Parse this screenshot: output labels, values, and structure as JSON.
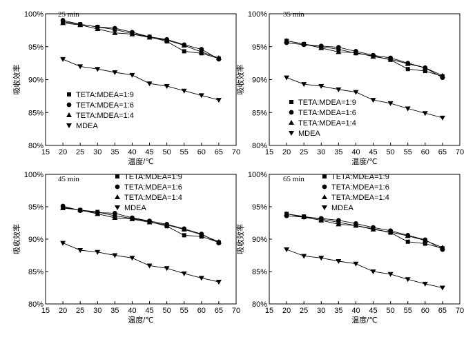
{
  "chart_data": [
    {
      "type": "line",
      "title": "25 min",
      "xlabel": "温度/℃",
      "ylabel": "吸收效率",
      "xlim": [
        15,
        70
      ],
      "ylim": [
        80,
        100
      ],
      "xticks": [
        "15",
        "20",
        "25",
        "30",
        "35",
        "40",
        "45",
        "50",
        "55",
        "60",
        "65",
        "70"
      ],
      "yticks": [
        "80%",
        "85%",
        "90%",
        "95%",
        "100%"
      ],
      "legend_position": "left-middle",
      "x": [
        20,
        25,
        30,
        35,
        40,
        45,
        50,
        55,
        60,
        65
      ],
      "series": [
        {
          "name": "TETA:MDEA=1:9",
          "marker": "square",
          "values": [
            98.8,
            98.4,
            98.0,
            97.6,
            97.0,
            96.5,
            95.8,
            94.3,
            94.0,
            93.2
          ]
        },
        {
          "name": "TETA:MDEA=1:6",
          "marker": "circle",
          "values": [
            99.0,
            98.4,
            98.0,
            97.8,
            97.2,
            96.5,
            96.1,
            95.3,
            94.6,
            93.1
          ]
        },
        {
          "name": "TETA:MDEA=1:4",
          "marker": "triangle",
          "values": [
            98.6,
            98.3,
            97.7,
            97.1,
            96.9,
            96.4,
            96.0,
            95.2,
            94.2,
            93.3
          ]
        },
        {
          "name": "MDEA",
          "marker": "triangle-down",
          "values": [
            93.1,
            92.0,
            91.6,
            91.1,
            90.7,
            89.4,
            89.0,
            88.3,
            87.6,
            86.9
          ]
        }
      ]
    },
    {
      "type": "line",
      "title": "35 min",
      "xlabel": "温度/℃",
      "ylabel": "吸收效率",
      "xlim": [
        15,
        70
      ],
      "ylim": [
        80,
        100
      ],
      "xticks": [
        "15",
        "20",
        "25",
        "30",
        "35",
        "40",
        "45",
        "50",
        "55",
        "60",
        "65",
        "70"
      ],
      "yticks": [
        "80%",
        "85%",
        "90%",
        "95%",
        "100%"
      ],
      "legend_position": "left-lower",
      "x": [
        20,
        25,
        30,
        35,
        40,
        45,
        50,
        55,
        60,
        65
      ],
      "series": [
        {
          "name": "TETA:MDEA=1:9",
          "marker": "square",
          "values": [
            95.9,
            95.4,
            95.0,
            94.6,
            94.0,
            93.6,
            93.0,
            91.6,
            91.3,
            90.5
          ]
        },
        {
          "name": "TETA:MDEA=1:6",
          "marker": "circle",
          "values": [
            95.6,
            95.3,
            95.1,
            94.9,
            94.3,
            93.7,
            93.3,
            92.5,
            91.8,
            90.3
          ]
        },
        {
          "name": "TETA:MDEA=1:4",
          "marker": "triangle",
          "values": [
            95.9,
            95.4,
            94.8,
            94.2,
            94.1,
            93.5,
            93.1,
            92.4,
            91.8,
            90.6
          ]
        },
        {
          "name": "MDEA",
          "marker": "triangle-down",
          "values": [
            90.3,
            89.3,
            89.0,
            88.5,
            88.1,
            86.9,
            86.4,
            85.6,
            84.9,
            84.2
          ]
        }
      ]
    },
    {
      "type": "line",
      "title": "45 min",
      "xlabel": "温度/℃",
      "ylabel": "吸收效率",
      "xlim": [
        15,
        70
      ],
      "ylim": [
        80,
        100
      ],
      "xticks": [
        "15",
        "20",
        "25",
        "30",
        "35",
        "40",
        "45",
        "50",
        "55",
        "60",
        "65",
        "70"
      ],
      "yticks": [
        "80%",
        "85%",
        "90%",
        "95%",
        "100%"
      ],
      "legend_position": "top-center",
      "x": [
        20,
        25,
        30,
        35,
        40,
        45,
        50,
        55,
        60,
        65
      ],
      "series": [
        {
          "name": "TETA:MDEA=1:9",
          "marker": "square",
          "values": [
            94.9,
            94.5,
            94.2,
            93.6,
            93.2,
            92.7,
            92.0,
            90.6,
            90.4,
            89.5
          ]
        },
        {
          "name": "TETA:MDEA=1:6",
          "marker": "circle",
          "values": [
            95.1,
            94.4,
            94.1,
            94.0,
            93.3,
            92.8,
            92.3,
            91.6,
            90.8,
            89.4
          ]
        },
        {
          "name": "TETA:MDEA=1:4",
          "marker": "triangle",
          "values": [
            94.8,
            94.5,
            93.9,
            93.3,
            93.1,
            92.6,
            92.2,
            91.5,
            90.7,
            89.6
          ]
        },
        {
          "name": "MDEA",
          "marker": "triangle-down",
          "values": [
            89.4,
            88.3,
            88.0,
            87.5,
            87.1,
            85.9,
            85.5,
            84.7,
            84.0,
            83.4
          ]
        }
      ]
    },
    {
      "type": "line",
      "title": "65 min",
      "xlabel": "温度/℃",
      "ylabel": "吸收效率",
      "xlim": [
        15,
        70
      ],
      "ylim": [
        80,
        100
      ],
      "xticks": [
        "15",
        "20",
        "25",
        "30",
        "35",
        "40",
        "45",
        "50",
        "55",
        "60",
        "65",
        "70"
      ],
      "yticks": [
        "80%",
        "85%",
        "90%",
        "95%",
        "100%"
      ],
      "legend_position": "top-center",
      "x": [
        20,
        25,
        30,
        35,
        40,
        45,
        50,
        55,
        60,
        65
      ],
      "series": [
        {
          "name": "TETA:MDEA=1:9",
          "marker": "square",
          "values": [
            93.9,
            93.5,
            93.1,
            92.6,
            92.1,
            91.6,
            91.0,
            89.6,
            89.3,
            88.6
          ]
        },
        {
          "name": "TETA:MDEA=1:6",
          "marker": "circle",
          "values": [
            93.6,
            93.4,
            93.2,
            92.9,
            92.4,
            91.8,
            91.3,
            90.6,
            89.9,
            88.4
          ]
        },
        {
          "name": "TETA:MDEA=1:4",
          "marker": "triangle",
          "values": [
            93.9,
            93.4,
            92.9,
            92.3,
            92.1,
            91.5,
            91.1,
            90.5,
            89.8,
            88.7
          ]
        },
        {
          "name": "MDEA",
          "marker": "triangle-down",
          "values": [
            88.4,
            87.4,
            87.1,
            86.6,
            86.2,
            85.0,
            84.6,
            83.8,
            83.1,
            82.5
          ]
        }
      ]
    }
  ]
}
